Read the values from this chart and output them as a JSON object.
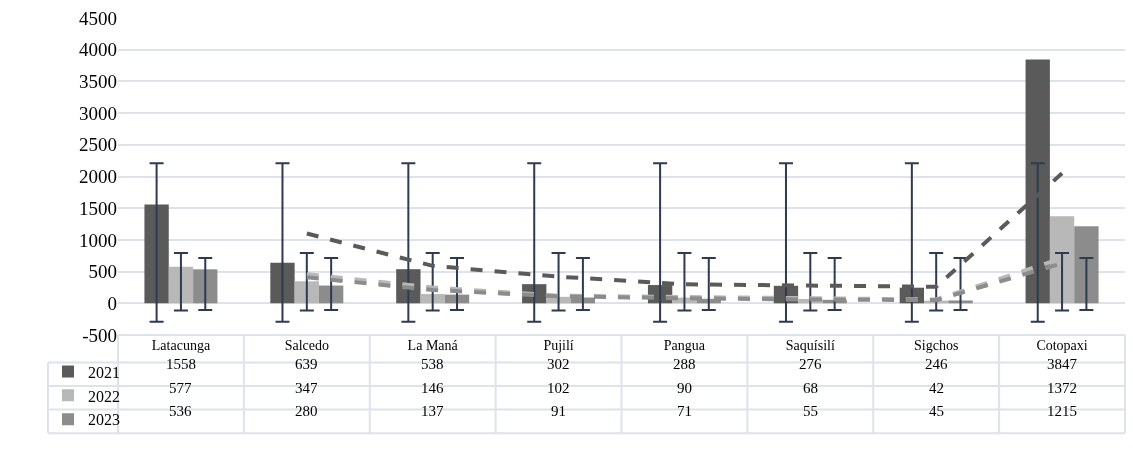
{
  "chart_data": {
    "type": "bar",
    "categories": [
      "Latacunga",
      "Salcedo",
      "La Maná",
      "Pujilí",
      "Pangua",
      "Saquísilí",
      "Sigchos",
      "Cotopaxi"
    ],
    "series": [
      {
        "name": "2021",
        "color": "#5a5a5a",
        "values": [
          1558,
          639,
          538,
          302,
          288,
          276,
          246,
          3847
        ],
        "value_labels": [
          "1558",
          "639",
          "538",
          "302",
          "288",
          "276",
          "246",
          "3847"
        ],
        "errors": [
          [
            -290,
            2210
          ],
          [
            -290,
            2210
          ],
          [
            -290,
            2210
          ],
          [
            -290,
            2210
          ],
          [
            -290,
            2210
          ],
          [
            -290,
            2210
          ],
          [
            -290,
            2210
          ],
          [
            -290,
            2210
          ]
        ]
      },
      {
        "name": "2022",
        "color": "#b8b8b8",
        "values": [
          577,
          347,
          146,
          102,
          90,
          68,
          42,
          1372
        ],
        "value_labels": [
          "577",
          "347",
          "146",
          "102",
          "90",
          "68",
          "42",
          "1372"
        ],
        "errors": [
          [
            -115,
            795
          ],
          [
            -115,
            795
          ],
          [
            -115,
            795
          ],
          [
            -115,
            795
          ],
          [
            -115,
            795
          ],
          [
            -115,
            795
          ],
          [
            -115,
            795
          ],
          [
            -115,
            795
          ]
        ]
      },
      {
        "name": "2023",
        "color": "#8c8c8c",
        "values": [
          536,
          280,
          137,
          91,
          71,
          55,
          45,
          1215
        ],
        "value_labels": [
          "536",
          "280",
          "137",
          "91",
          "71",
          "55",
          "45",
          "1215"
        ],
        "errors": [
          [
            -105,
            715
          ],
          [
            -105,
            715
          ],
          [
            -105,
            715
          ],
          [
            -105,
            715
          ],
          [
            -105,
            715
          ],
          [
            -105,
            715
          ],
          [
            -105,
            715
          ],
          [
            -105,
            715
          ]
        ]
      },
      {
        "type": "line",
        "color": "#5a5a5a",
        "line_style": "dashed",
        "x": [
          "Salcedo",
          "La Maná",
          "Pujilí",
          "Pangua",
          "Saquísilí",
          "Sigchos",
          "Cotopaxi"
        ],
        "values": [
          1100,
          590,
          420,
          300,
          280,
          260,
          2050
        ]
      },
      {
        "type": "line",
        "color": "#b8b8b8",
        "line_style": "dashed",
        "x": [
          "Salcedo",
          "La Maná",
          "Pujilí",
          "Pangua",
          "Saquísilí",
          "Sigchos",
          "Cotopaxi"
        ],
        "values": [
          460,
          250,
          120,
          100,
          80,
          60,
          710
        ]
      },
      {
        "type": "line",
        "color": "#8c8c8c",
        "line_style": "dashed",
        "x": [
          "Salcedo",
          "La Maná",
          "Pujilí",
          "Pangua",
          "Saquísilí",
          "Sigchos",
          "Cotopaxi"
        ],
        "values": [
          410,
          210,
          110,
          80,
          60,
          50,
          630
        ]
      }
    ],
    "ylim": [
      -500,
      4500
    ],
    "yticks": [
      -500,
      0,
      500,
      1000,
      1500,
      2000,
      2500,
      3000,
      3500,
      4000,
      4500
    ],
    "grid": "y",
    "legend": "bottom left",
    "marker": "none"
  }
}
